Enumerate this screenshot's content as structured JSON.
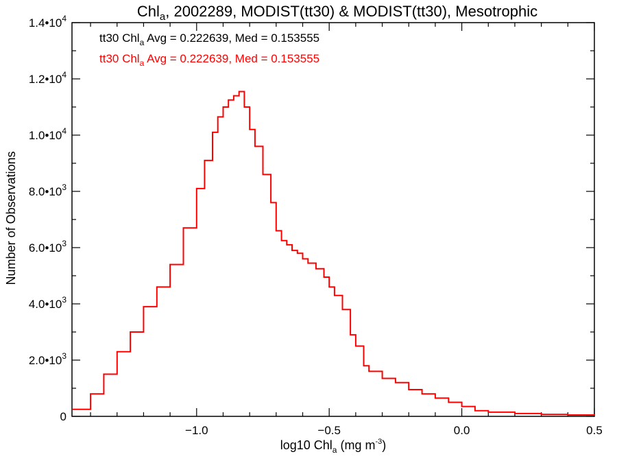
{
  "chart_data": {
    "type": "line",
    "title": {
      "prefix": "Chl",
      "sub": "a",
      "suffix": ", 2002289, MODIST(tt30) & MODIST(tt30), Mesotrophic"
    },
    "xlabel": {
      "prefix": "log10 Chl",
      "sub": "a",
      "suffix": " (mg m",
      "sup": "-3",
      "end": ")"
    },
    "ylabel": "Number of Observations",
    "xlim": [
      -1.47,
      0.5
    ],
    "ylim": [
      0,
      14000
    ],
    "x_ticks": [
      {
        "value": -1.0,
        "label": "−1.0"
      },
      {
        "value": -0.5,
        "label": "−0.5"
      },
      {
        "value": 0.0,
        "label": "0.0"
      },
      {
        "value": 0.5,
        "label": "0.5"
      }
    ],
    "y_ticks": [
      {
        "value": 0,
        "mant": "0",
        "exp": ""
      },
      {
        "value": 2000,
        "mant": "2.0•10",
        "exp": "3"
      },
      {
        "value": 4000,
        "mant": "4.0•10",
        "exp": "3"
      },
      {
        "value": 6000,
        "mant": "6.0•10",
        "exp": "3"
      },
      {
        "value": 8000,
        "mant": "8.0•10",
        "exp": "3"
      },
      {
        "value": 10000,
        "mant": "1.0•10",
        "exp": "4"
      },
      {
        "value": 12000,
        "mant": "1.2•10",
        "exp": "4"
      },
      {
        "value": 14000,
        "mant": "1.4•10",
        "exp": "4"
      }
    ],
    "legend": [
      {
        "prefix": "tt30 Chl",
        "sub": "a",
        "suffix": " Avg = 0.222639, Med = 0.153555",
        "color": "#000000"
      },
      {
        "prefix": "tt30 Chl",
        "sub": "a",
        "suffix": " Avg = 0.222639, Med = 0.153555",
        "color": "#ff0000"
      }
    ],
    "series": [
      {
        "color": "#ff0000",
        "style": "step",
        "x": [
          -1.47,
          -1.4,
          -1.35,
          -1.3,
          -1.25,
          -1.2,
          -1.15,
          -1.1,
          -1.05,
          -1.0,
          -0.97,
          -0.94,
          -0.92,
          -0.9,
          -0.88,
          -0.86,
          -0.84,
          -0.82,
          -0.8,
          -0.78,
          -0.75,
          -0.72,
          -0.7,
          -0.68,
          -0.66,
          -0.64,
          -0.62,
          -0.6,
          -0.58,
          -0.55,
          -0.52,
          -0.5,
          -0.48,
          -0.45,
          -0.42,
          -0.4,
          -0.37,
          -0.35,
          -0.3,
          -0.25,
          -0.2,
          -0.15,
          -0.1,
          -0.05,
          0.0,
          0.05,
          0.1,
          0.2,
          0.3,
          0.4,
          0.5
        ],
        "values": [
          250,
          800,
          1500,
          2300,
          3000,
          3900,
          4600,
          5400,
          6700,
          8100,
          9100,
          10100,
          10650,
          11000,
          11250,
          11400,
          11550,
          11000,
          10200,
          9600,
          8600,
          7600,
          6600,
          6250,
          6100,
          5900,
          5800,
          5600,
          5450,
          5250,
          4950,
          4600,
          4300,
          3800,
          2900,
          2500,
          1800,
          1600,
          1350,
          1200,
          950,
          800,
          650,
          500,
          350,
          200,
          150,
          100,
          70,
          50,
          30
        ]
      }
    ]
  }
}
